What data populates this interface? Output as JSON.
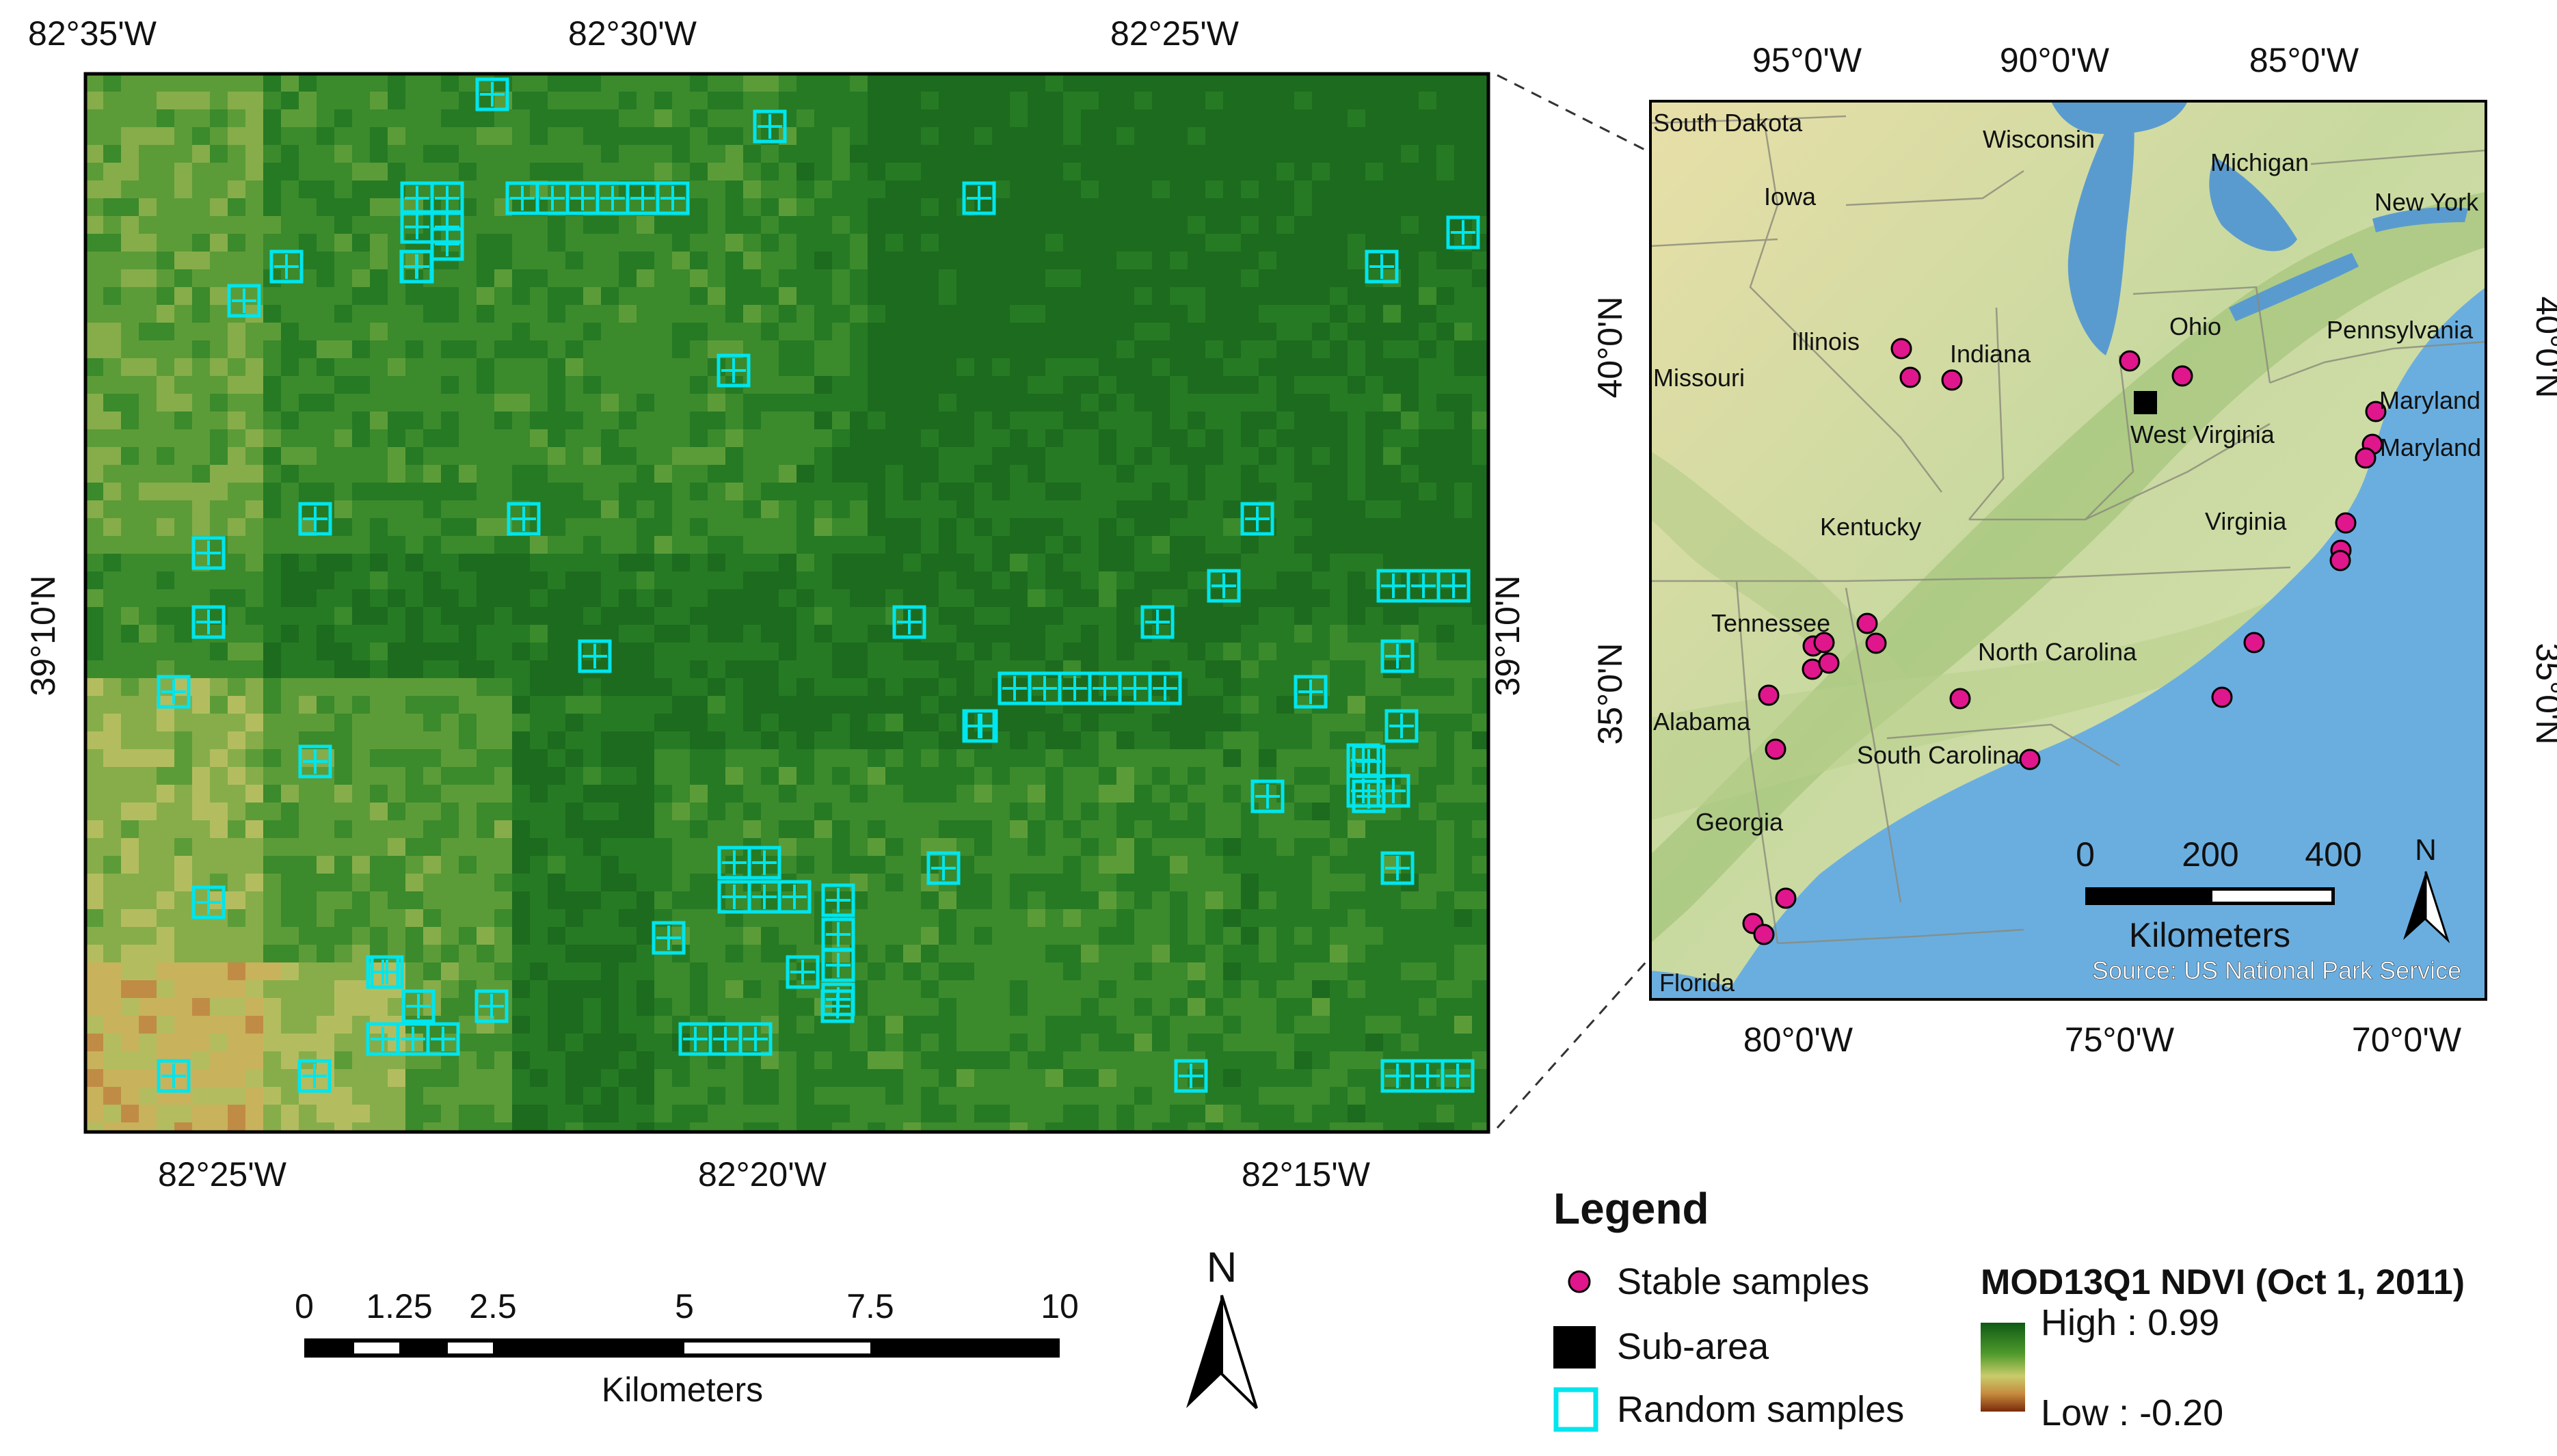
{
  "left_map": {
    "top_ticks": [
      "82°35'W",
      "82°30'W",
      "82°25'W"
    ],
    "bottom_ticks": [
      "82°25'W",
      "82°20'W",
      "82°15'W"
    ],
    "left_tick": "39°10'N",
    "right_tick": "39°10'N",
    "scale": {
      "labels": [
        "0",
        "1.25",
        "2.5",
        "5",
        "7.5",
        "10"
      ],
      "unit": "Kilometers"
    },
    "north": "N"
  },
  "right_map": {
    "top_ticks": [
      "95°0'W",
      "90°0'W",
      "85°0'W"
    ],
    "bottom_ticks": [
      "80°0'W",
      "75°0'W",
      "70°0'W"
    ],
    "left_ticks": [
      "40°0'N",
      "35°0'N"
    ],
    "right_ticks": [
      "40°0'N",
      "35°0'N"
    ],
    "states": [
      "South Dakota",
      "Wisconsin",
      "Michigan",
      "Iowa",
      "New York",
      "Illinois",
      "Indiana",
      "Ohio",
      "Pennsylvania",
      "Missouri",
      "Maryland",
      "West Virginia",
      "Maryland",
      "Kentucky",
      "Virginia",
      "Tennessee",
      "North Carolina",
      "Alabama",
      "South Carolina",
      "Georgia",
      "Florida"
    ],
    "scale": {
      "labels": [
        "0",
        "200",
        "400"
      ],
      "unit": "Kilometers"
    },
    "north": "N",
    "source": "Source: US National Park Service"
  },
  "legend": {
    "title": "Legend",
    "items": [
      "Stable samples",
      "Sub-area",
      "Random samples"
    ],
    "ndvi_title": "MOD13Q1 NDVI (Oct 1, 2011)",
    "ndvi_high": "High : 0.99",
    "ndvi_low": "Low : -0.20"
  },
  "colors": {
    "stable_sample": "#e0168c",
    "random_sample": "#00e5ee",
    "sub_area": "#000000",
    "ndvi_high": "#0f5a14",
    "ndvi_low": "#7a2a08"
  }
}
